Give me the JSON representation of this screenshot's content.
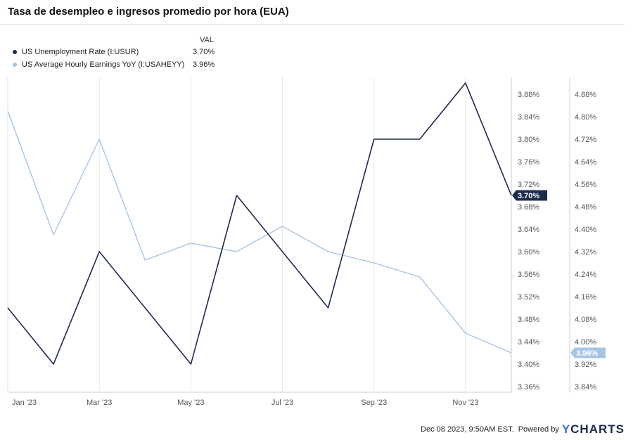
{
  "chart_data": {
    "type": "line",
    "title": "Tasa de desempleo e ingresos promedio por hora (EUA)",
    "legend_value_header": "VAL",
    "x": [
      "2023-01",
      "2023-02",
      "2023-03",
      "2023-04",
      "2023-05",
      "2023-06",
      "2023-07",
      "2023-08",
      "2023-09",
      "2023-10",
      "2023-11",
      "2023-12"
    ],
    "x_tick_labels": [
      {
        "date": "2023-01",
        "label": "Jan '23"
      },
      {
        "date": "2023-03",
        "label": "Mar '23"
      },
      {
        "date": "2023-05",
        "label": "May '23"
      },
      {
        "date": "2023-07",
        "label": "Jul '23"
      },
      {
        "date": "2023-09",
        "label": "Sep '23"
      },
      {
        "date": "2023-11",
        "label": "Nov '23"
      }
    ],
    "series": [
      {
        "name": "US Unemployment Rate (I:USUR)",
        "color": "#1c2c4c",
        "axis": "left",
        "values": [
          3.5,
          3.4,
          3.6,
          3.5,
          3.4,
          3.7,
          3.6,
          3.5,
          3.8,
          3.8,
          3.9,
          3.7
        ],
        "last_value_label": "3.70%"
      },
      {
        "name": "US Average Hourly Earnings YoY (I:USAHEYY)",
        "color": "#a8c4e4",
        "axis": "right",
        "values": [
          4.82,
          4.38,
          4.72,
          4.29,
          4.35,
          4.32,
          4.41,
          4.32,
          4.28,
          4.23,
          4.03,
          3.96
        ],
        "last_value_label": "3.96%"
      }
    ],
    "left_axis": {
      "ylim": [
        3.35,
        3.91
      ],
      "ticks": [
        3.36,
        3.4,
        3.44,
        3.48,
        3.52,
        3.56,
        3.6,
        3.64,
        3.68,
        3.72,
        3.76,
        3.8,
        3.84,
        3.88
      ],
      "tick_labels": [
        "3.36%",
        "3.40%",
        "3.44%",
        "3.48%",
        "3.52%",
        "3.56%",
        "3.60%",
        "3.64%",
        "3.68%",
        "3.72%",
        "3.76%",
        "3.80%",
        "3.84%",
        "3.88%"
      ]
    },
    "right_axis": {
      "ylim": [
        3.82,
        4.94
      ],
      "ticks": [
        3.84,
        3.92,
        4.0,
        4.08,
        4.16,
        4.24,
        4.32,
        4.4,
        4.48,
        4.56,
        4.64,
        4.72,
        4.8,
        4.88
      ],
      "tick_labels": [
        "3.84%",
        "3.92%",
        "4.00%",
        "4.08%",
        "4.16%",
        "4.24%",
        "4.32%",
        "4.40%",
        "4.48%",
        "4.56%",
        "4.64%",
        "4.72%",
        "4.80%",
        "4.88%"
      ]
    },
    "grid": true,
    "legend_position": "top-left"
  },
  "footer": {
    "date": "Dec 08 2023, 9:50AM EST.",
    "powered_by": "Powered by",
    "brand_y": "Y",
    "brand_rest": "CHARTS"
  }
}
